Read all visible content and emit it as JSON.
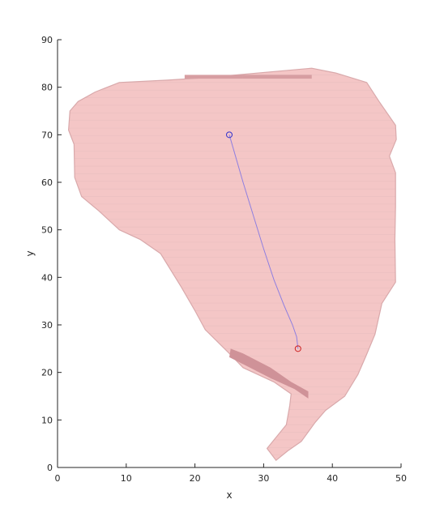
{
  "chart_data": {
    "type": "scatter",
    "title": "",
    "xlabel": "x",
    "ylabel": "y",
    "xlim": [
      0,
      50
    ],
    "ylim": [
      0,
      90
    ],
    "xticks": [
      "0",
      "10",
      "20",
      "30",
      "40",
      "50"
    ],
    "yticks": [
      "0",
      "10",
      "20",
      "30",
      "40",
      "50",
      "60",
      "70",
      "80",
      "90"
    ],
    "grid": false,
    "legend": "none",
    "region": {
      "color": "#f4c6c6",
      "edge_color": "#d9a9ab",
      "outline": [
        [
          1.8,
          75
        ],
        [
          3,
          77
        ],
        [
          5.5,
          79
        ],
        [
          9,
          81
        ],
        [
          16,
          81.5
        ],
        [
          21.5,
          82
        ],
        [
          37,
          84
        ],
        [
          40.5,
          83
        ],
        [
          45,
          81
        ],
        [
          46.8,
          77
        ],
        [
          49.2,
          72
        ],
        [
          49.3,
          69
        ],
        [
          48.3,
          65.5
        ],
        [
          49.2,
          62
        ],
        [
          49.2,
          55
        ],
        [
          49.1,
          48
        ],
        [
          49.2,
          39
        ],
        [
          47.2,
          34.5
        ],
        [
          46.2,
          28
        ],
        [
          44.9,
          23.5
        ],
        [
          43.7,
          19.5
        ],
        [
          41.8,
          15
        ],
        [
          39,
          12
        ],
        [
          37.5,
          9.5
        ],
        [
          35.5,
          5.5
        ],
        [
          33.5,
          3.5
        ],
        [
          31.8,
          1.5
        ],
        [
          30.5,
          4
        ],
        [
          33.3,
          9
        ],
        [
          33.8,
          13
        ],
        [
          34,
          15.5
        ],
        [
          31.5,
          18
        ],
        [
          27,
          21
        ],
        [
          25,
          24
        ],
        [
          21.5,
          29
        ],
        [
          20,
          33
        ],
        [
          18,
          38
        ],
        [
          15,
          45
        ],
        [
          12,
          48
        ],
        [
          9,
          50
        ],
        [
          6,
          54
        ],
        [
          3.5,
          57
        ],
        [
          2.5,
          61
        ],
        [
          2.4,
          68
        ],
        [
          1.6,
          71
        ]
      ],
      "dark_patches": [
        {
          "x": [
            18.5,
            27
          ],
          "y": [
            81.8,
            82.6
          ]
        },
        {
          "x": [
            27,
            37
          ],
          "y": [
            81.8,
            82.6
          ]
        },
        {
          "x": [
            25,
            34
          ],
          "y": [
            19,
            25
          ]
        }
      ]
    },
    "path": {
      "color": "#8f7fe0",
      "x": [
        25,
        25.8,
        27,
        28.5,
        30,
        31.5,
        33,
        34.2,
        34.8,
        35
      ],
      "y": [
        70,
        66,
        60,
        53,
        46,
        39.5,
        34,
        30,
        27.5,
        25
      ]
    },
    "start_point": {
      "x": 25,
      "y": 70,
      "color": "#3333cc"
    },
    "end_point": {
      "x": 35,
      "y": 25,
      "color": "#cc2222"
    }
  }
}
